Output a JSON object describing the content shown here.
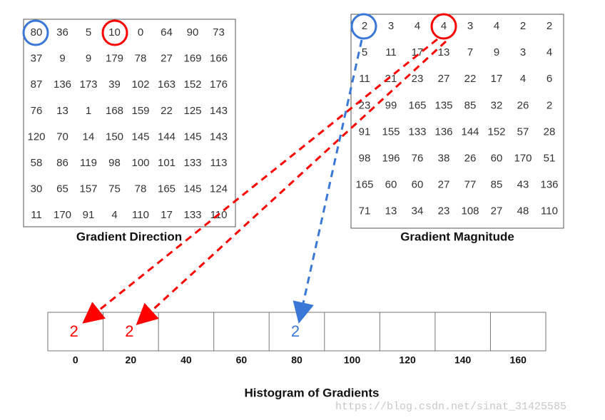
{
  "direction_grid": {
    "caption": "Gradient Direction",
    "rows": [
      [
        "80",
        "36",
        "5",
        "10",
        "0",
        "64",
        "90",
        "73"
      ],
      [
        "37",
        "9",
        "9",
        "179",
        "78",
        "27",
        "169",
        "166"
      ],
      [
        "87",
        "136",
        "173",
        "39",
        "102",
        "163",
        "152",
        "176"
      ],
      [
        "76",
        "13",
        "1",
        "168",
        "159",
        "22",
        "125",
        "143"
      ],
      [
        "120",
        "70",
        "14",
        "150",
        "145",
        "144",
        "145",
        "143"
      ],
      [
        "58",
        "86",
        "119",
        "98",
        "100",
        "101",
        "133",
        "113"
      ],
      [
        "30",
        "65",
        "157",
        "75",
        "78",
        "165",
        "145",
        "124"
      ],
      [
        "11",
        "170",
        "91",
        "4",
        "110",
        "17",
        "133",
        "110"
      ]
    ]
  },
  "magnitude_grid": {
    "caption": "Gradient Magnitude",
    "rows": [
      [
        "2",
        "3",
        "4",
        "4",
        "3",
        "4",
        "2",
        "2"
      ],
      [
        "5",
        "11",
        "17",
        "13",
        "7",
        "9",
        "3",
        "4"
      ],
      [
        "11",
        "21",
        "23",
        "27",
        "22",
        "17",
        "4",
        "6"
      ],
      [
        "23",
        "99",
        "165",
        "135",
        "85",
        "32",
        "26",
        "2"
      ],
      [
        "91",
        "155",
        "133",
        "136",
        "144",
        "152",
        "57",
        "28"
      ],
      [
        "98",
        "196",
        "76",
        "38",
        "26",
        "60",
        "170",
        "51"
      ],
      [
        "165",
        "60",
        "60",
        "27",
        "77",
        "85",
        "43",
        "136"
      ],
      [
        "71",
        "13",
        "34",
        "23",
        "108",
        "27",
        "48",
        "110"
      ]
    ]
  },
  "histogram": {
    "title": "Histogram of Gradients",
    "bin_labels": [
      "0",
      "20",
      "40",
      "60",
      "80",
      "100",
      "120",
      "140",
      "160"
    ],
    "entries": [
      {
        "bin": "0",
        "value": "2",
        "color": "#ff0000"
      },
      {
        "bin": "20",
        "value": "2",
        "color": "#ff0000"
      },
      {
        "bin": "80",
        "value": "2",
        "color": "#3a78d8"
      }
    ]
  },
  "watermark": "https://blog.csdn.net/sinat_31425585"
}
